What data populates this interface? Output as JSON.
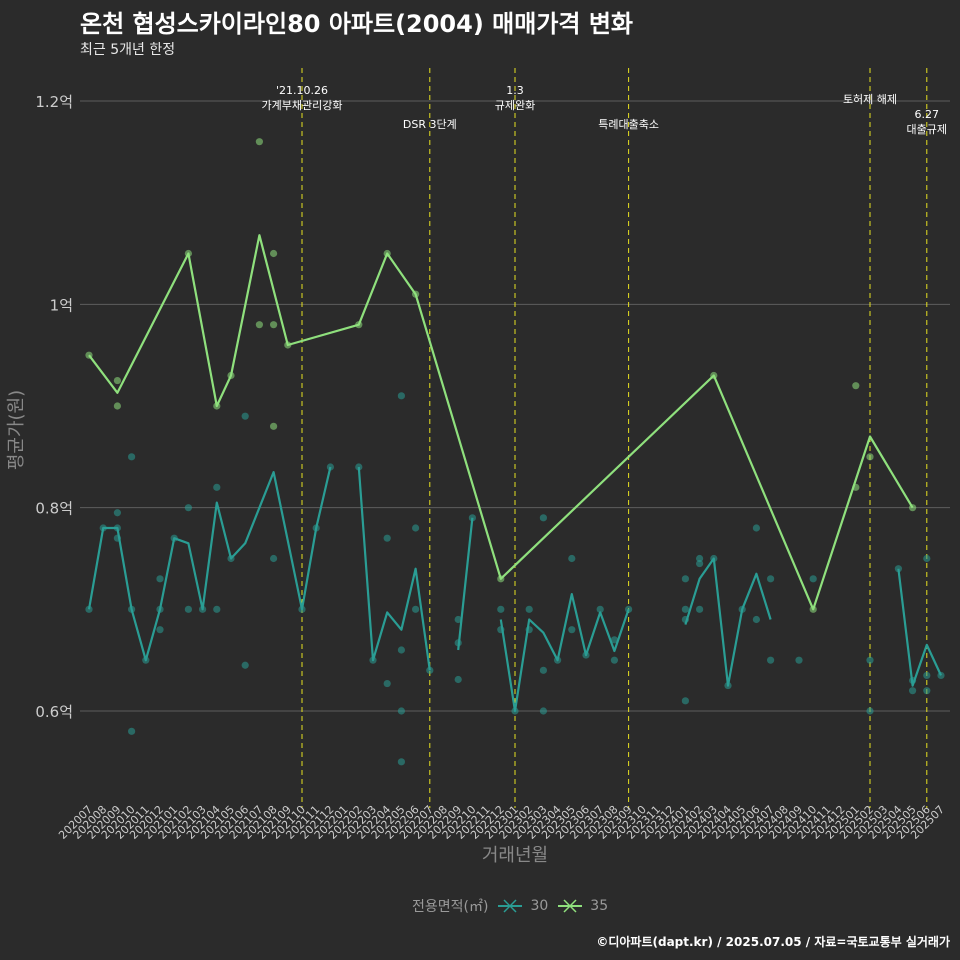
{
  "header": {
    "title": "온천 협성스카이라인80 아파트(2004) 매매가격 변화",
    "subtitle": "최근 5개년 한정"
  },
  "footer": {
    "caption": "©디아파트(dapt.kr) / 2025.07.05 / 자료=국토교통부 실거래가"
  },
  "legend": {
    "title": "전용면적(㎡)",
    "items": [
      {
        "label": "30",
        "color": "#2a9d94"
      },
      {
        "label": "35",
        "color": "#8fe07d"
      }
    ]
  },
  "colors": {
    "background": "#2b2b2b",
    "grid": "#5e5e5e",
    "event_line": "#e6e020",
    "axis_text": "#cccccc",
    "axis_title": "#888888"
  },
  "chart_data": {
    "type": "line",
    "title": "온천 협성스카이라인80 아파트(2004) 매매가격 변화",
    "subtitle": "최근 5개년 한정",
    "xlabel": "거래년월",
    "ylabel": "평균가(원)",
    "ylim": [
      0.52,
      1.22
    ],
    "yticks": [
      {
        "value": 0.6,
        "label": "0.6억"
      },
      {
        "value": 0.8,
        "label": "0.8억"
      },
      {
        "value": 1.0,
        "label": "1억"
      },
      {
        "value": 1.2,
        "label": "1.2억"
      }
    ],
    "categories": [
      "202007",
      "202008",
      "202009",
      "202010",
      "202011",
      "202012",
      "202101",
      "202102",
      "202103",
      "202104",
      "202105",
      "202106",
      "202107",
      "202108",
      "202109",
      "202110",
      "202111",
      "202112",
      "202201",
      "202202",
      "202203",
      "202204",
      "202205",
      "202206",
      "202207",
      "202208",
      "202209",
      "202210",
      "202211",
      "202212",
      "202301",
      "202302",
      "202303",
      "202304",
      "202305",
      "202306",
      "202307",
      "202308",
      "202309",
      "202310",
      "202311",
      "202312",
      "202401",
      "202402",
      "202403",
      "202404",
      "202405",
      "202406",
      "202407",
      "202408",
      "202409",
      "202410",
      "202411",
      "202412",
      "202501",
      "202502",
      "202503",
      "202504",
      "202505",
      "202506",
      "202507"
    ],
    "grid": true,
    "legend_position": "bottom",
    "events": [
      {
        "x": "202110",
        "label": "'21.10.26\n가계부채관리강화",
        "level": 0
      },
      {
        "x": "202207",
        "label": "DSR 3단계",
        "level": 1
      },
      {
        "x": "202301",
        "label": "1.3\n규제완화",
        "level": 0
      },
      {
        "x": "202309",
        "label": "특례대출축소",
        "level": 1
      },
      {
        "x": "202502",
        "label": "토허제 해제",
        "level": 0
      },
      {
        "x": "202506",
        "label": "6.27\n대출규제",
        "level": 1
      }
    ],
    "series": [
      {
        "name": "30",
        "color": "#2a9d94",
        "line": [
          [
            "202007",
            0.7
          ],
          [
            "202008",
            0.78
          ],
          [
            "202009",
            0.78
          ],
          [
            "202010",
            0.7
          ],
          [
            "202011",
            0.65
          ],
          [
            "202012",
            0.7
          ],
          [
            "202101",
            0.77
          ],
          [
            "202102",
            0.765
          ],
          [
            "202103",
            0.7
          ],
          [
            "202104",
            0.805
          ],
          [
            "202105",
            0.75
          ],
          [
            "202106",
            0.765
          ],
          [
            "202107",
            0.8
          ],
          [
            "202108",
            0.835
          ],
          [
            "202110",
            0.7
          ],
          [
            "202111",
            0.78
          ],
          [
            "202112",
            0.84
          ],
          null,
          [
            "202202",
            0.84
          ],
          [
            "202203",
            0.65
          ],
          [
            "202204",
            0.697
          ],
          [
            "202205",
            0.68
          ],
          [
            "202206",
            0.74
          ],
          [
            "202207",
            0.64
          ],
          null,
          [
            "202209",
            0.66
          ],
          [
            "202210",
            0.79
          ],
          null,
          [
            "202212",
            0.69
          ],
          [
            "202301",
            0.6
          ],
          [
            "202302",
            0.69
          ],
          [
            "202303",
            0.677
          ],
          [
            "202304",
            0.65
          ],
          [
            "202305",
            0.715
          ],
          [
            "202306",
            0.655
          ],
          [
            "202307",
            0.697
          ],
          [
            "202308",
            0.659
          ],
          [
            "202309",
            0.7
          ],
          null,
          [
            "202401",
            0.685
          ],
          [
            "202402",
            0.73
          ],
          [
            "202403",
            0.75
          ],
          [
            "202404",
            0.625
          ],
          [
            "202405",
            0.7
          ],
          [
            "202406",
            0.735
          ],
          [
            "202407",
            0.69
          ],
          null,
          [
            "202410",
            0.73
          ],
          null,
          [
            "202504",
            0.74
          ],
          [
            "202505",
            0.625
          ],
          [
            "202506",
            0.665
          ],
          [
            "202507",
            0.635
          ]
        ],
        "points": [
          [
            "202007",
            0.7
          ],
          [
            "202008",
            0.78
          ],
          [
            "202009",
            0.78
          ],
          [
            "202009",
            0.795
          ],
          [
            "202009",
            0.77
          ],
          [
            "202010",
            0.85
          ],
          [
            "202010",
            0.7
          ],
          [
            "202010",
            0.58
          ],
          [
            "202011",
            0.65
          ],
          [
            "202012",
            0.73
          ],
          [
            "202012",
            0.7
          ],
          [
            "202012",
            0.68
          ],
          [
            "202101",
            0.77
          ],
          [
            "202102",
            0.8
          ],
          [
            "202102",
            0.7
          ],
          [
            "202103",
            0.7
          ],
          [
            "202104",
            0.82
          ],
          [
            "202104",
            0.7
          ],
          [
            "202105",
            0.75
          ],
          [
            "202106",
            0.89
          ],
          [
            "202106",
            0.645
          ],
          [
            "202108",
            0.75
          ],
          [
            "202110",
            0.7
          ],
          [
            "202111",
            0.78
          ],
          [
            "202112",
            0.84
          ],
          [
            "202202",
            0.84
          ],
          [
            "202203",
            0.65
          ],
          [
            "202204",
            0.77
          ],
          [
            "202204",
            0.627
          ],
          [
            "202205",
            0.91
          ],
          [
            "202205",
            0.66
          ],
          [
            "202205",
            0.6
          ],
          [
            "202205",
            0.55
          ],
          [
            "202206",
            0.78
          ],
          [
            "202206",
            0.7
          ],
          [
            "202207",
            0.64
          ],
          [
            "202209",
            0.69
          ],
          [
            "202209",
            0.667
          ],
          [
            "202209",
            0.631
          ],
          [
            "202210",
            0.79
          ],
          [
            "202212",
            0.7
          ],
          [
            "202212",
            0.68
          ],
          [
            "202301",
            0.6
          ],
          [
            "202302",
            0.7
          ],
          [
            "202302",
            0.68
          ],
          [
            "202303",
            0.79
          ],
          [
            "202303",
            0.64
          ],
          [
            "202303",
            0.6
          ],
          [
            "202304",
            0.65
          ],
          [
            "202305",
            0.75
          ],
          [
            "202305",
            0.68
          ],
          [
            "202306",
            0.655
          ],
          [
            "202307",
            0.7
          ],
          [
            "202308",
            0.67
          ],
          [
            "202308",
            0.65
          ],
          [
            "202309",
            0.7
          ],
          [
            "202401",
            0.73
          ],
          [
            "202401",
            0.7
          ],
          [
            "202401",
            0.69
          ],
          [
            "202401",
            0.61
          ],
          [
            "202402",
            0.75
          ],
          [
            "202402",
            0.745
          ],
          [
            "202402",
            0.7
          ],
          [
            "202403",
            0.75
          ],
          [
            "202404",
            0.625
          ],
          [
            "202405",
            0.7
          ],
          [
            "202406",
            0.78
          ],
          [
            "202406",
            0.69
          ],
          [
            "202407",
            0.73
          ],
          [
            "202407",
            0.65
          ],
          [
            "202409",
            0.65
          ],
          [
            "202410",
            0.73
          ],
          [
            "202502",
            0.65
          ],
          [
            "202502",
            0.6
          ],
          [
            "202504",
            0.74
          ],
          [
            "202505",
            0.63
          ],
          [
            "202505",
            0.62
          ],
          [
            "202506",
            0.75
          ],
          [
            "202506",
            0.635
          ],
          [
            "202506",
            0.62
          ],
          [
            "202507",
            0.635
          ]
        ]
      },
      {
        "name": "35",
        "color": "#8fe07d",
        "line": [
          [
            "202007",
            0.95
          ],
          [
            "202009",
            0.913
          ],
          [
            "202102",
            1.05
          ],
          [
            "202104",
            0.9
          ],
          [
            "202105",
            0.93
          ],
          [
            "202107",
            1.068
          ],
          [
            "202109",
            0.96
          ],
          [
            "202202",
            0.98
          ],
          [
            "202204",
            1.05
          ],
          [
            "202206",
            1.01
          ],
          [
            "202212",
            0.73
          ],
          [
            "202403",
            0.93
          ],
          [
            "202410",
            0.7
          ],
          [
            "202502",
            0.87
          ],
          [
            "202505",
            0.8
          ]
        ],
        "points": [
          [
            "202007",
            0.95
          ],
          [
            "202009",
            0.925
          ],
          [
            "202009",
            0.9
          ],
          [
            "202102",
            1.05
          ],
          [
            "202104",
            0.9
          ],
          [
            "202105",
            0.93
          ],
          [
            "202107",
            1.16
          ],
          [
            "202107",
            0.98
          ],
          [
            "202108",
            1.05
          ],
          [
            "202108",
            0.98
          ],
          [
            "202108",
            0.88
          ],
          [
            "202109",
            0.96
          ],
          [
            "202202",
            0.98
          ],
          [
            "202204",
            1.05
          ],
          [
            "202206",
            1.01
          ],
          [
            "202212",
            0.73
          ],
          [
            "202403",
            0.93
          ],
          [
            "202410",
            0.7
          ],
          [
            "202501",
            0.92
          ],
          [
            "202501",
            0.82
          ],
          [
            "202502",
            0.85
          ],
          [
            "202505",
            0.8
          ]
        ]
      }
    ]
  }
}
